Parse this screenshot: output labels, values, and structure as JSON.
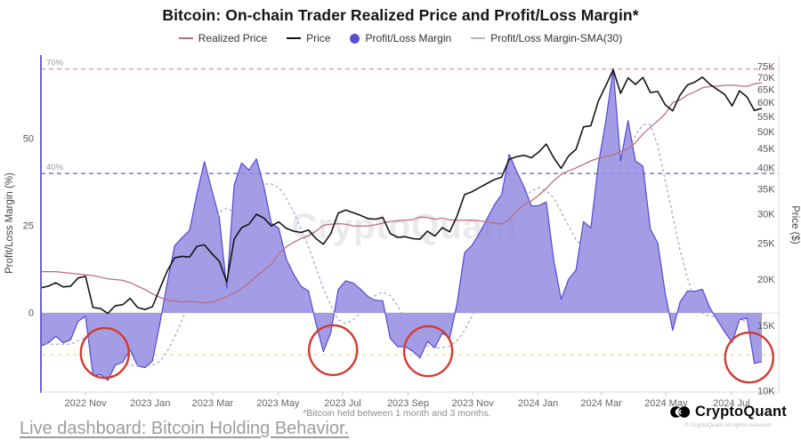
{
  "title": "Bitcoin: On-chain Trader Realized Price and Profit/Loss Margin*",
  "legend": {
    "items": [
      {
        "label": "Realized Price",
        "swatch": "line",
        "color": "#bd6b7a"
      },
      {
        "label": "Price",
        "swatch": "line",
        "color": "#141414"
      },
      {
        "label": "Profit/Loss Margin",
        "swatch": "dot",
        "color": "#5b4ed1"
      },
      {
        "label": "Profit/Loss Margin-SMA(30)",
        "swatch": "line",
        "color": "#b3aed6"
      }
    ]
  },
  "watermark": "CryptoQuant",
  "footnote": "*Bitcoin held between 1 month and 3 months.",
  "dashboard_link": "Live dashboard: Bitcoin Holding Behavior.",
  "logo": {
    "text": "CryptoQuant",
    "copyright": "© CryptoQuant All rights reserved."
  },
  "axes": {
    "left": {
      "title": "Profit/Loss Margin (%)",
      "ticks": [
        0,
        25,
        50
      ]
    },
    "right": {
      "title": "Price ($)",
      "tick_values": [
        10,
        15,
        20,
        25,
        30,
        35,
        40,
        45,
        50,
        55,
        60,
        65,
        70,
        75
      ],
      "tick_labels": [
        "10K",
        "15K",
        "20K",
        "25K",
        "30K",
        "35K",
        "40K",
        "45K",
        "50K",
        "55K",
        "60K",
        "65K",
        "70K",
        "75K"
      ]
    },
    "x": {
      "ticks": [
        {
          "label": "2022 Nov",
          "i": 6.0
        },
        {
          "label": "2023 Jan",
          "i": 14.7
        },
        {
          "label": "2023 Mar",
          "i": 23.1
        },
        {
          "label": "2023 May",
          "i": 31.9
        },
        {
          "label": "2023 Jul",
          "i": 40.6
        },
        {
          "label": "2023 Sep",
          "i": 49.4
        },
        {
          "label": "2023 Nov",
          "i": 58.1
        },
        {
          "label": "2024 Jan",
          "i": 66.9
        },
        {
          "label": "2024 Mar",
          "i": 75.4
        },
        {
          "label": "2024 May",
          "i": 84.1
        },
        {
          "label": "2024 Jul",
          "i": 92.9
        }
      ]
    }
  },
  "thresholds": [
    {
      "label": "70%",
      "value": 70,
      "color": "#dd9292"
    },
    {
      "label": "40%",
      "value": 40,
      "color": "#6b6be2"
    },
    {
      "label": "",
      "value": -12,
      "color": "#ead8a2"
    }
  ],
  "chart_data": {
    "type": "mixed",
    "x_start_date": "2022-09-20",
    "x_step_days": 7,
    "left_axis": {
      "label": "Profit/Loss Margin (%)",
      "unit": "%",
      "range": [
        -23,
        74
      ]
    },
    "right_axis": {
      "label": "Price ($)",
      "scale": "log",
      "unit": "thousand USD",
      "range": [
        10,
        80
      ]
    },
    "series": [
      {
        "name": "Profit/Loss Margin",
        "type": "area",
        "axis": "left",
        "unit": "%",
        "fill": "#8f88e0",
        "stroke": "#5348d2",
        "values": [
          -9.5,
          -8.6,
          -6.7,
          -8.6,
          -7.7,
          -2.4,
          -1.0,
          -18.0,
          -17.7,
          -19.4,
          -15.0,
          -14.1,
          -10.6,
          -15.2,
          -15.7,
          -13.8,
          -3.1,
          8.8,
          19.3,
          21.6,
          23.7,
          34.4,
          43.4,
          35.1,
          27.3,
          7.1,
          36.7,
          43.0,
          41.0,
          44.2,
          36.3,
          25.7,
          24.3,
          15.5,
          11.1,
          7.6,
          6.3,
          -3.0,
          -11.1,
          -5.7,
          6.7,
          9.2,
          8.6,
          6.8,
          4.7,
          3.6,
          3.5,
          -7.3,
          -9.7,
          -9.7,
          -11.0,
          -12.9,
          -8.2,
          -10.0,
          -5.8,
          -7.2,
          2.8,
          17.3,
          19.4,
          22.9,
          26.9,
          31.0,
          34.0,
          45.5,
          40.7,
          36.2,
          30.7,
          30.8,
          31.8,
          15.1,
          3.9,
          9.7,
          12.3,
          26.2,
          24.4,
          42.6,
          54.9,
          70.0,
          43.6,
          55.2,
          43.6,
          42.1,
          24.1,
          20.0,
          5.7,
          -5.0,
          3.1,
          6.3,
          6.2,
          6.8,
          1.5,
          -2.1,
          -5.4,
          -8.5,
          -2.0,
          -1.5,
          -14.5,
          -14.0
        ]
      },
      {
        "name": "Profit/Loss Margin-SMA(30)",
        "type": "line",
        "dash": true,
        "axis": "left",
        "unit": "%",
        "stroke": "#a6a0d8",
        "values": [
          -8,
          -9,
          -9,
          -9,
          -9,
          -8,
          -7,
          -8,
          -10,
          -12,
          -13.5,
          -14.5,
          -15,
          -15,
          -15.2,
          -15,
          -14,
          -11,
          -7,
          -2,
          4,
          11,
          18,
          24,
          29,
          30,
          29,
          30,
          32,
          35,
          37,
          37,
          36,
          33,
          29,
          24,
          19,
          13,
          7,
          2,
          -2,
          -3,
          -2,
          0,
          3,
          5,
          6,
          5,
          2,
          -2,
          -5,
          -8,
          -9.5,
          -10,
          -10,
          -9.5,
          -8,
          -5,
          -1,
          4,
          9,
          14,
          19,
          24,
          29,
          33,
          35,
          36,
          35,
          33,
          29,
          25,
          21,
          19,
          19,
          21,
          26,
          33,
          40,
          46,
          51,
          54,
          54,
          48,
          38,
          28,
          18,
          10,
          3,
          0,
          -1,
          -1,
          -2,
          -2,
          -2,
          -2.5,
          -4,
          -7
        ]
      },
      {
        "name": "Realized Price",
        "type": "line",
        "axis": "right",
        "unit": "thousand USD",
        "stroke": "#bd6b7a",
        "values": [
          21.0,
          21.0,
          21.0,
          20.9,
          20.8,
          20.7,
          20.6,
          20.5,
          20.3,
          20.1,
          20.0,
          19.9,
          19.6,
          19.2,
          18.8,
          18.3,
          17.9,
          17.6,
          17.5,
          17.4,
          17.5,
          17.4,
          17.3,
          17.4,
          17.6,
          18.0,
          18.4,
          18.9,
          19.6,
          20.4,
          21.2,
          22.0,
          23.5,
          24.5,
          25.2,
          25.8,
          26.3,
          27.0,
          28.0,
          28.2,
          28.3,
          28.2,
          27.9,
          27.9,
          27.9,
          28.1,
          28.4,
          28.7,
          28.8,
          28.9,
          29.0,
          29.5,
          29.4,
          29.1,
          29.3,
          29.0,
          28.9,
          28.9,
          28.9,
          28.8,
          28.6,
          28.4,
          28.2,
          29.0,
          30.5,
          31.8,
          32.6,
          33.8,
          35.2,
          37.0,
          38.4,
          39.3,
          40.0,
          40.9,
          41.8,
          42.5,
          43.0,
          43.3,
          44.3,
          45.1,
          46.8,
          49.4,
          51.5,
          53.6,
          56.0,
          60.0,
          61.0,
          63.0,
          64.2,
          65.8,
          66.3,
          66.5,
          66.8,
          66.9,
          66.6,
          66.4,
          67.4,
          67.9
        ]
      },
      {
        "name": "Price",
        "type": "line",
        "axis": "right",
        "unit": "thousand USD",
        "stroke": "#141414",
        "values": [
          19.0,
          19.2,
          19.6,
          19.1,
          19.2,
          20.2,
          20.4,
          16.8,
          16.7,
          16.2,
          17.0,
          17.1,
          17.8,
          16.8,
          16.6,
          16.9,
          18.9,
          21.1,
          22.9,
          23.1,
          23.0,
          24.6,
          24.8,
          23.5,
          22.4,
          19.7,
          25.7,
          27.6,
          28.2,
          30.0,
          29.3,
          27.9,
          28.6,
          27.5,
          27.0,
          26.8,
          27.2,
          25.8,
          24.9,
          26.6,
          30.2,
          30.8,
          30.3,
          29.8,
          29.2,
          29.1,
          29.4,
          26.6,
          26.0,
          26.1,
          25.8,
          25.7,
          27.0,
          26.2,
          27.6,
          26.9,
          29.7,
          33.9,
          34.5,
          35.4,
          36.3,
          37.2,
          37.8,
          42.2,
          42.9,
          43.3,
          42.6,
          44.2,
          46.4,
          42.6,
          39.9,
          43.1,
          44.9,
          51.6,
          52.0,
          60.6,
          66.6,
          73.6,
          63.6,
          70.0,
          67.2,
          70.2,
          63.9,
          64.3,
          59.2,
          57.0,
          62.9,
          67.0,
          68.2,
          70.3,
          67.3,
          65.1,
          63.2,
          58.8,
          64.6,
          62.2,
          57.2,
          57.9
        ]
      }
    ],
    "annotations": {
      "color": "#d6392e",
      "circles": [
        {
          "i": 8.6,
          "pct": -11.5
        },
        {
          "i": 39.3,
          "pct": -10.7
        },
        {
          "i": 52.1,
          "pct": -11.0
        },
        {
          "i": 95.3,
          "pct": -12.8
        }
      ]
    }
  }
}
